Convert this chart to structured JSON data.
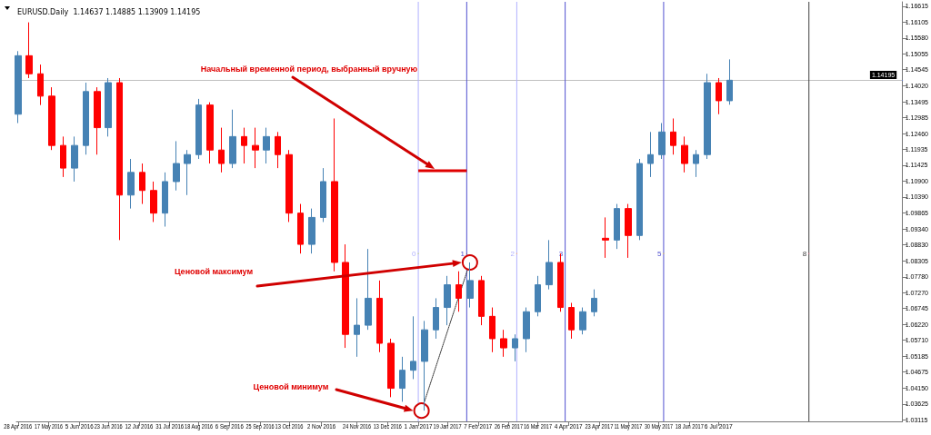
{
  "chart_data": {
    "type": "candlestick",
    "title": "EURUSD.Daily  1.14637 1.14885 1.13909 1.14195",
    "x": [
      "2016-04-28",
      "2016-05-05",
      "2016-05-12",
      "2016-05-19",
      "2016-05-26",
      "2016-06-02",
      "2016-06-09",
      "2016-06-16",
      "2016-06-23",
      "2016-06-30",
      "2016-07-07",
      "2016-07-14",
      "2016-07-21",
      "2016-07-28",
      "2016-08-04",
      "2016-08-11",
      "2016-08-18",
      "2016-08-25",
      "2016-09-01",
      "2016-09-08",
      "2016-09-15",
      "2016-09-22",
      "2016-09-29",
      "2016-10-06",
      "2016-10-13",
      "2016-10-20",
      "2016-10-27",
      "2016-11-03",
      "2016-11-10",
      "2016-11-17",
      "2016-11-24",
      "2016-12-01",
      "2016-12-08",
      "2016-12-15",
      "2016-12-22",
      "2016-12-29",
      "2017-01-05",
      "2017-01-12",
      "2017-01-19",
      "2017-01-26",
      "2017-02-02",
      "2017-02-09",
      "2017-02-16",
      "2017-02-23",
      "2017-03-02",
      "2017-03-09",
      "2017-03-16",
      "2017-03-23",
      "2017-03-30",
      "2017-04-06",
      "2017-04-13",
      "2017-04-20",
      "2017-04-27",
      "2017-05-04",
      "2017-05-11",
      "2017-05-18",
      "2017-05-25",
      "2017-06-01",
      "2017-06-08",
      "2017-06-15",
      "2017-06-22",
      "2017-06-29",
      "2017-07-06",
      "2017-07-13"
    ],
    "ohlc": [
      [
        1.1309,
        1.1515,
        1.128,
        1.15
      ],
      [
        1.15,
        1.1609,
        1.1427,
        1.1441
      ],
      [
        1.1441,
        1.1471,
        1.1339,
        1.1368
      ],
      [
        1.1368,
        1.1397,
        1.1192,
        1.1207
      ],
      [
        1.1207,
        1.1236,
        1.1104,
        1.1133
      ],
      [
        1.1133,
        1.1236,
        1.1089,
        1.1207
      ],
      [
        1.1207,
        1.1412,
        1.1177,
        1.1383
      ],
      [
        1.1383,
        1.1397,
        1.1177,
        1.1265
      ],
      [
        1.1265,
        1.1427,
        1.1236,
        1.1412
      ],
      [
        1.1412,
        1.1427,
        1.0898,
        1.1045
      ],
      [
        1.1045,
        1.1163,
        1.1001,
        1.1119
      ],
      [
        1.1119,
        1.1148,
        1.1016,
        1.106
      ],
      [
        1.106,
        1.1089,
        1.0957,
        1.0986
      ],
      [
        1.0986,
        1.1119,
        1.0942,
        1.1089
      ],
      [
        1.1089,
        1.1221,
        1.106,
        1.1148
      ],
      [
        1.1148,
        1.1192,
        1.1045,
        1.1177
      ],
      [
        1.1177,
        1.1359,
        1.1163,
        1.1339
      ],
      [
        1.1339,
        1.1348,
        1.1148,
        1.1192
      ],
      [
        1.1192,
        1.1265,
        1.1119,
        1.1148
      ],
      [
        1.1148,
        1.1324,
        1.1133,
        1.1236
      ],
      [
        1.1236,
        1.1265,
        1.1148,
        1.1207
      ],
      [
        1.1207,
        1.1265,
        1.1133,
        1.1192
      ],
      [
        1.1192,
        1.1265,
        1.1148,
        1.1236
      ],
      [
        1.1236,
        1.1251,
        1.1133,
        1.1177
      ],
      [
        1.1177,
        1.1192,
        1.0957,
        1.0986
      ],
      [
        1.0986,
        1.1016,
        1.0854,
        1.0884
      ],
      [
        1.0884,
        1.1001,
        1.0854,
        1.0972
      ],
      [
        1.0972,
        1.1133,
        1.0957,
        1.1089
      ],
      [
        1.1089,
        1.1295,
        1.0796,
        1.0825
      ],
      [
        1.0825,
        1.0884,
        1.0546,
        1.059
      ],
      [
        1.059,
        1.0708,
        1.0517,
        1.062
      ],
      [
        1.062,
        1.0869,
        1.0605,
        1.0708
      ],
      [
        1.0708,
        1.0766,
        1.0532,
        1.0561
      ],
      [
        1.0561,
        1.0576,
        1.0385,
        1.0414
      ],
      [
        1.0414,
        1.0517,
        1.037,
        1.0473
      ],
      [
        1.0473,
        1.0649,
        1.0444,
        1.0502
      ],
      [
        1.0502,
        1.0634,
        1.0341,
        1.0605
      ],
      [
        1.0605,
        1.0708,
        1.0576,
        1.0678
      ],
      [
        1.0678,
        1.0781,
        1.062,
        1.0752
      ],
      [
        1.0752,
        1.0796,
        1.0664,
        1.0708
      ],
      [
        1.0708,
        1.0825,
        1.0678,
        1.0766
      ],
      [
        1.0766,
        1.0781,
        1.062,
        1.0649
      ],
      [
        1.0649,
        1.0678,
        1.0532,
        1.0576
      ],
      [
        1.0576,
        1.0605,
        1.0517,
        1.0546
      ],
      [
        1.0546,
        1.059,
        1.0502,
        1.0576
      ],
      [
        1.0576,
        1.0678,
        1.0532,
        1.0664
      ],
      [
        1.0664,
        1.0781,
        1.0649,
        1.0752
      ],
      [
        1.0752,
        1.0898,
        1.0737,
        1.0825
      ],
      [
        1.0825,
        1.0854,
        1.0664,
        1.0678
      ],
      [
        1.0678,
        1.0693,
        1.0576,
        1.0605
      ],
      [
        1.0605,
        1.0678,
        1.059,
        1.0664
      ],
      [
        1.0664,
        1.0737,
        1.0649,
        1.0708
      ],
      [
        1.0904,
        1.0972,
        1.084,
        1.0898
      ],
      [
        1.0898,
        1.1016,
        1.0869,
        1.1001
      ],
      [
        1.1001,
        1.1016,
        1.084,
        1.0913
      ],
      [
        1.0913,
        1.1163,
        1.0898,
        1.1148
      ],
      [
        1.1148,
        1.1251,
        1.1104,
        1.1177
      ],
      [
        1.1177,
        1.128,
        1.1163,
        1.1251
      ],
      [
        1.1251,
        1.1295,
        1.1177,
        1.1207
      ],
      [
        1.1207,
        1.1236,
        1.1119,
        1.1148
      ],
      [
        1.1148,
        1.1192,
        1.1104,
        1.1177
      ],
      [
        1.1177,
        1.1441,
        1.1163,
        1.1412
      ],
      [
        1.1412,
        1.1427,
        1.1309,
        1.1353
      ],
      [
        1.1353,
        1.1488,
        1.134,
        1.142
      ]
    ],
    "colors": [
      "#4682b4",
      "#ff0000",
      "#ff0000",
      "#ff0000",
      "#ff0000",
      "#4682b4",
      "#4682b4",
      "#ff0000",
      "#4682b4",
      "#ff0000",
      "#4682b4",
      "#ff0000",
      "#ff0000",
      "#4682b4",
      "#4682b4",
      "#4682b4",
      "#4682b4",
      "#ff0000",
      "#ff0000",
      "#4682b4",
      "#ff0000",
      "#ff0000",
      "#4682b4",
      "#ff0000",
      "#ff0000",
      "#ff0000",
      "#4682b4",
      "#4682b4",
      "#ff0000",
      "#ff0000",
      "#4682b4",
      "#4682b4",
      "#ff0000",
      "#ff0000",
      "#4682b4",
      "#4682b4",
      "#4682b4",
      "#4682b4",
      "#4682b4",
      "#ff0000",
      "#4682b4",
      "#ff0000",
      "#ff0000",
      "#ff0000",
      "#4682b4",
      "#4682b4",
      "#4682b4",
      "#4682b4",
      "#ff0000",
      "#ff0000",
      "#4682b4",
      "#4682b4",
      "#ff0000",
      "#4682b4",
      "#ff0000",
      "#4682b4",
      "#4682b4",
      "#4682b4",
      "#ff0000",
      "#ff0000",
      "#4682b4",
      "#4682b4",
      "#ff0000",
      "#4682b4"
    ],
    "xlim": [
      "2016-04-27",
      "2017-10-28"
    ],
    "xticks": [
      {
        "value": "2016-04-28",
        "label": "28 Apr 2016"
      },
      {
        "value": "2016-05-17",
        "label": "17 May 2016"
      },
      {
        "value": "2016-06-05",
        "label": "5 Jun 2016"
      },
      {
        "value": "2016-06-23",
        "label": "23 Jun 2016"
      },
      {
        "value": "2016-07-12",
        "label": "12 Jul 2016"
      },
      {
        "value": "2016-07-31",
        "label": "31 Jul 2016"
      },
      {
        "value": "2016-08-18",
        "label": "18 Aug 2016"
      },
      {
        "value": "2016-09-06",
        "label": "6 Sep 2016"
      },
      {
        "value": "2016-09-25",
        "label": "25 Sep 2016"
      },
      {
        "value": "2016-10-13",
        "label": "13 Oct 2016"
      },
      {
        "value": "2016-11-02",
        "label": "2 Nov 2016"
      },
      {
        "value": "2016-11-24",
        "label": "24 Nov 2016"
      },
      {
        "value": "2016-12-13",
        "label": "13 Dec 2016"
      },
      {
        "value": "2017-01-01",
        "label": "1 Jan 2017"
      },
      {
        "value": "2017-01-19",
        "label": "19 Jan 2017"
      },
      {
        "value": "2017-02-07",
        "label": "7 Feb 2017"
      },
      {
        "value": "2017-02-26",
        "label": "26 Feb 2017"
      },
      {
        "value": "2017-03-16",
        "label": "16 Mar 2017"
      },
      {
        "value": "2017-04-04",
        "label": "4 Apr 2017"
      },
      {
        "value": "2017-04-23",
        "label": "23 Apr 2017"
      },
      {
        "value": "2017-05-11",
        "label": "11 May 2017"
      },
      {
        "value": "2017-05-30",
        "label": "30 May 2017"
      },
      {
        "value": "2017-06-18",
        "label": "18 Jun 2017"
      },
      {
        "value": "2017-07-06",
        "label": "6 Jul 2017"
      }
    ],
    "ylim": [
      1.0306,
      1.1676
    ],
    "yticks": [
      1.16615,
      1.16105,
      {
        "value": 1.1558,
        "label": "1.15580"
      },
      1.15055,
      1.14545,
      {
        "value": 1.1402,
        "label": "1.14020"
      },
      1.13495,
      1.12985,
      {
        "value": 1.1246,
        "label": "1.12460"
      },
      1.11935,
      1.11425,
      {
        "value": 1.109,
        "label": "1.10900"
      },
      {
        "value": 1.1039,
        "label": "1.10390"
      },
      1.09865,
      {
        "value": 1.0934,
        "label": "1.09340"
      },
      {
        "value": 1.0883,
        "label": "1.08830"
      },
      1.08305,
      {
        "value": 1.0778,
        "label": "1.07780"
      },
      {
        "value": 1.0727,
        "label": "1.07270"
      },
      1.06745,
      {
        "value": 1.0622,
        "label": "1.06220"
      },
      {
        "value": 1.0571,
        "label": "1.05710"
      },
      1.05185,
      1.04675,
      {
        "value": 1.0415,
        "label": "1.04150"
      },
      1.03625,
      1.03115
    ],
    "ref_lines": [
      {
        "axis": "y",
        "value": 1.14195,
        "label": "1.14195",
        "color": "#c0c0c0"
      },
      {
        "axis": "x",
        "value": "2017-01-01",
        "label": "0",
        "color": "#b0b0ff"
      },
      {
        "axis": "x",
        "value": "2017-01-31",
        "label": "1",
        "color": "#5050d0"
      },
      {
        "axis": "x",
        "value": "2017-03-03",
        "label": "2",
        "color": "#b0b0ff"
      },
      {
        "axis": "x",
        "value": "2017-04-02",
        "label": "3",
        "color": "#5050d0"
      },
      {
        "axis": "x",
        "value": "2017-06-02",
        "label": "5",
        "color": "#5050d0"
      },
      {
        "axis": "x",
        "value": "2017-08-31",
        "label": "8",
        "color": "#404040"
      }
    ],
    "series": [
      {
        "type": "line",
        "x": [
          "2017-01-03",
          "2017-02-02"
        ],
        "values": [
          1.0341,
          1.0825
        ],
        "color": "#333333",
        "line_style": "dotted",
        "marker": "circle"
      }
    ],
    "annotations": [
      "Начальный временной период, выбранный вручную",
      "Ценовой максимум",
      "Ценовой минимум"
    ],
    "grid": false
  }
}
